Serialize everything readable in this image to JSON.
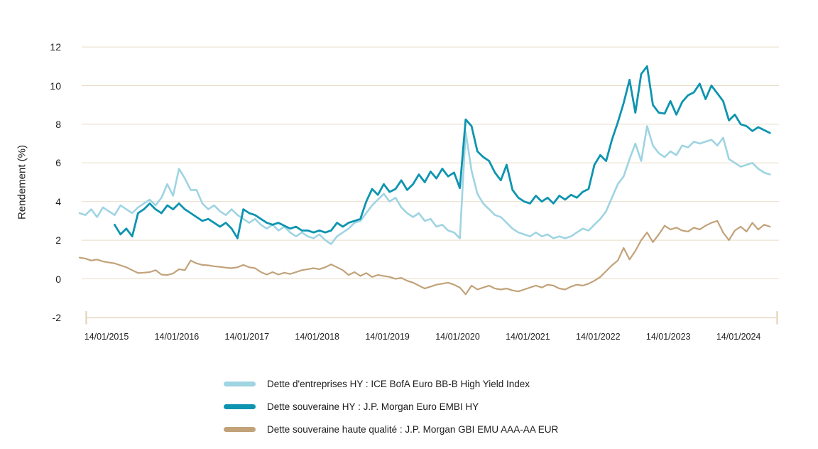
{
  "chart_data": {
    "type": "line",
    "title": "",
    "ylabel": "Rendement (%)",
    "xlabel": "",
    "ylim": [
      -2,
      12
    ],
    "y_ticks": [
      12,
      10,
      8,
      6,
      4,
      2,
      0,
      -2
    ],
    "x_tick_labels": [
      "14/01/2015",
      "14/01/2016",
      "14/01/2017",
      "14/01/2018",
      "14/01/2019",
      "14/01/2020",
      "14/01/2021",
      "14/01/2022",
      "14/01/2023",
      "14/01/2024"
    ],
    "grid": "horizontal-only",
    "legend_position": "bottom",
    "x_start": "09/2014",
    "x_step": "1 month",
    "colors": {
      "corporate_hy": "#9fd4e2",
      "sovereign_hy": "#0d94b0",
      "sovereign_quality": "#c2a279",
      "gridline": "#e8dcc7",
      "axis": "#e7d7bf",
      "text": "#1d1d1d"
    },
    "series": [
      {
        "id": "corporate-hy",
        "name": "Dette d'entreprises HY : ICE BofA Euro BB-B High Yield Index",
        "color": "#9fd4e2",
        "width": 2.6,
        "start_index": 0,
        "values": [
          3.4,
          3.3,
          3.6,
          3.2,
          3.7,
          3.5,
          3.3,
          3.8,
          3.6,
          3.4,
          3.7,
          3.9,
          4.1,
          3.8,
          4.2,
          4.9,
          4.3,
          5.7,
          5.2,
          4.6,
          4.6,
          3.9,
          3.6,
          3.8,
          3.5,
          3.3,
          3.6,
          3.3,
          3.1,
          2.9,
          3.1,
          2.8,
          2.6,
          2.8,
          2.5,
          2.7,
          2.4,
          2.2,
          2.4,
          2.2,
          2.1,
          2.3,
          2.0,
          1.8,
          2.2,
          2.4,
          2.6,
          2.9,
          3.0,
          3.4,
          3.8,
          4.1,
          4.4,
          4.0,
          4.2,
          3.7,
          3.4,
          3.2,
          3.4,
          3.0,
          3.1,
          2.7,
          2.8,
          2.5,
          2.4,
          2.1,
          7.6,
          5.6,
          4.4,
          3.9,
          3.6,
          3.3,
          3.2,
          2.9,
          2.6,
          2.4,
          2.3,
          2.2,
          2.4,
          2.2,
          2.3,
          2.1,
          2.2,
          2.1,
          2.2,
          2.4,
          2.6,
          2.5,
          2.8,
          3.1,
          3.5,
          4.2,
          4.9,
          5.3,
          6.2,
          7.0,
          6.1,
          7.9,
          6.9,
          6.5,
          6.3,
          6.6,
          6.4,
          6.9,
          6.8,
          7.1,
          7.0,
          7.1,
          7.2,
          6.9,
          7.3,
          6.2,
          6.0,
          5.8,
          5.9,
          6.0,
          5.7,
          5.5,
          5.4
        ]
      },
      {
        "id": "sovereign-hy",
        "name": "Dette souveraine HY : J.P. Morgan Euro EMBI HY",
        "color": "#0d94b0",
        "width": 2.8,
        "start_index": 6,
        "values": [
          2.8,
          2.3,
          2.6,
          2.2,
          3.4,
          3.6,
          3.9,
          3.6,
          3.4,
          3.8,
          3.6,
          3.9,
          3.6,
          3.4,
          3.2,
          3.0,
          3.1,
          2.9,
          2.7,
          2.9,
          2.6,
          2.1,
          3.6,
          3.4,
          3.3,
          3.1,
          2.9,
          2.8,
          2.9,
          2.75,
          2.6,
          2.7,
          2.5,
          2.5,
          2.4,
          2.5,
          2.4,
          2.5,
          2.9,
          2.7,
          2.9,
          3.0,
          3.1,
          4.0,
          4.65,
          4.35,
          4.9,
          4.5,
          4.65,
          5.1,
          4.6,
          4.9,
          5.4,
          5.0,
          5.55,
          5.2,
          5.7,
          5.3,
          5.5,
          4.7,
          8.25,
          7.9,
          6.6,
          6.3,
          6.1,
          5.5,
          5.1,
          5.9,
          4.6,
          4.2,
          4.0,
          3.9,
          4.3,
          4.0,
          4.2,
          3.9,
          4.3,
          4.1,
          4.35,
          4.2,
          4.5,
          4.65,
          5.9,
          6.4,
          6.1,
          7.2,
          8.1,
          9.1,
          10.3,
          8.6,
          10.6,
          11.0,
          9.0,
          8.6,
          8.55,
          9.2,
          8.5,
          9.15,
          9.5,
          9.65,
          10.1,
          9.3,
          10.0,
          9.6,
          9.2,
          8.2,
          8.5,
          8.0,
          7.9,
          7.65,
          7.85,
          7.7,
          7.55
        ]
      },
      {
        "id": "sovereign-quality",
        "name": "Dette souveraine haute qualité : J.P. Morgan GBI EMU AAA-AA EUR",
        "color": "#c2a279",
        "width": 2.2,
        "start_index": 0,
        "values": [
          1.1,
          1.05,
          0.95,
          1.0,
          0.9,
          0.85,
          0.8,
          0.7,
          0.6,
          0.45,
          0.3,
          0.32,
          0.35,
          0.45,
          0.22,
          0.2,
          0.28,
          0.5,
          0.45,
          0.95,
          0.8,
          0.72,
          0.7,
          0.65,
          0.62,
          0.58,
          0.55,
          0.6,
          0.72,
          0.6,
          0.55,
          0.35,
          0.22,
          0.35,
          0.22,
          0.32,
          0.25,
          0.35,
          0.45,
          0.5,
          0.55,
          0.5,
          0.6,
          0.75,
          0.6,
          0.45,
          0.2,
          0.35,
          0.15,
          0.3,
          0.1,
          0.2,
          0.15,
          0.1,
          0.0,
          0.05,
          -0.1,
          -0.2,
          -0.35,
          -0.5,
          -0.4,
          -0.3,
          -0.25,
          -0.2,
          -0.3,
          -0.45,
          -0.8,
          -0.35,
          -0.55,
          -0.45,
          -0.35,
          -0.5,
          -0.55,
          -0.5,
          -0.6,
          -0.65,
          -0.55,
          -0.45,
          -0.35,
          -0.45,
          -0.3,
          -0.35,
          -0.5,
          -0.55,
          -0.4,
          -0.3,
          -0.35,
          -0.25,
          -0.1,
          0.1,
          0.4,
          0.7,
          0.95,
          1.6,
          1.0,
          1.45,
          2.0,
          2.4,
          1.9,
          2.3,
          2.75,
          2.55,
          2.65,
          2.5,
          2.45,
          2.65,
          2.55,
          2.75,
          2.9,
          3.0,
          2.4,
          2.0,
          2.5,
          2.7,
          2.45,
          2.9,
          2.55,
          2.8,
          2.7
        ]
      }
    ]
  }
}
